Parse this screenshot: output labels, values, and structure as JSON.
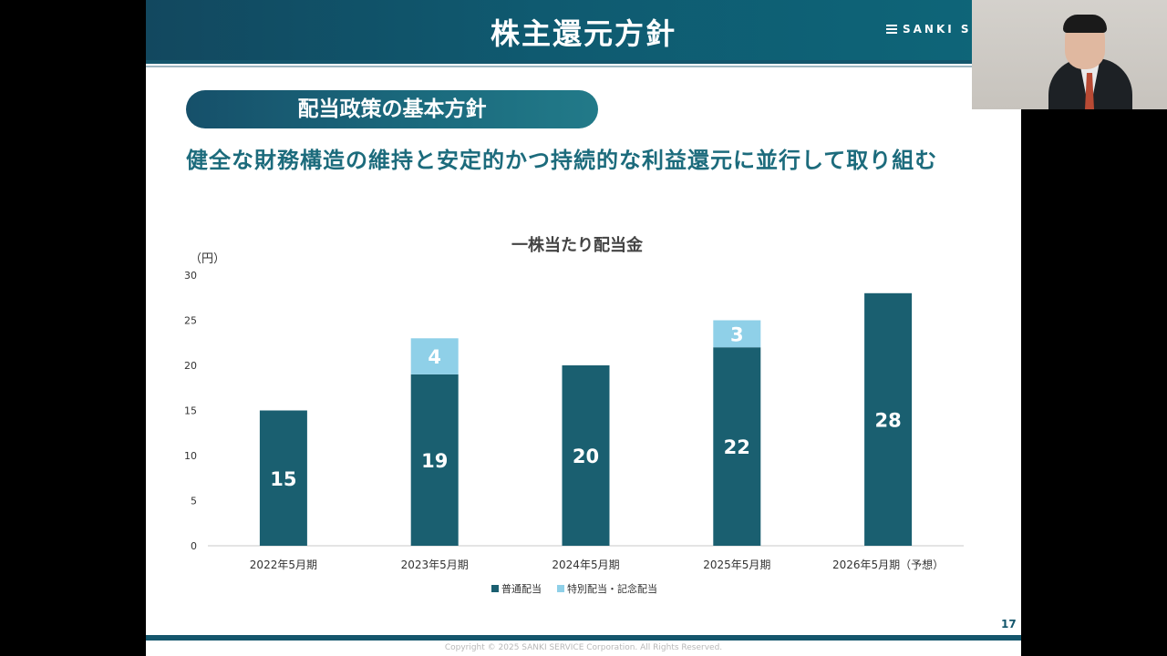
{
  "header": {
    "title": "株主還元方針",
    "logo_text": "SANKI SE"
  },
  "section": {
    "pill_label": "配当政策の基本方針"
  },
  "subtitle": "健全な財務構造の維持と安定的かつ持続的な利益還元に並行して取り組む",
  "colors": {
    "ordinary": "#1a5f70",
    "special": "#8fd0e8",
    "accent": "#14566c"
  },
  "chart_data": {
    "type": "bar",
    "stacked": true,
    "title": "一株当たり配当金",
    "ylabel": "（円）",
    "xlabel": "",
    "ylim": [
      0,
      30
    ],
    "yticks": [
      "0",
      "5",
      "10",
      "15",
      "20",
      "25",
      "30"
    ],
    "categories": [
      "2022年5月期",
      "2023年5月期",
      "2024年5月期",
      "2025年5月期",
      "2026年5月期（予想）"
    ],
    "series": [
      {
        "name": "普通配当",
        "values": [
          15,
          19,
          20,
          22,
          28
        ]
      },
      {
        "name": "特別配当・記念配当",
        "values": [
          0,
          4,
          0,
          3,
          0
        ]
      }
    ],
    "legend_position": "bottom",
    "grid": false
  },
  "footer": {
    "page_number": "17",
    "copyright": "Copyright © 2025 SANKI SERVICE Corporation. All Rights Reserved."
  }
}
